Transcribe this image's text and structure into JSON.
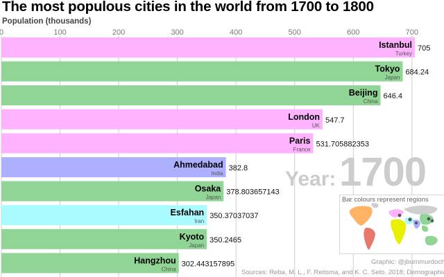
{
  "header": {
    "title": "The most populous cities in the world from 1700 to 1800",
    "axis_label": "Population (thousands)"
  },
  "year": {
    "label": "Year:",
    "value": "1700"
  },
  "legend": {
    "title": "Bar colours represent regions"
  },
  "footer": {
    "credit": "Graphic: @jburnmurdoch",
    "sources": "Sources: Reba, M. L., F. Reitsma, and K. C. Seto. 2018; Demographia"
  },
  "colors": {
    "Europe": "#ffb3ff",
    "East Asia": "#90d595",
    "South Asia": "#adb0ff",
    "Middle East": "#aafbff",
    "axis": "#cccccc",
    "text": "#000000",
    "subtext": "#555555"
  },
  "chart_data": {
    "type": "bar",
    "orientation": "horizontal",
    "xlim": [
      0,
      705
    ],
    "ticks": [
      "0",
      "100",
      "200",
      "300",
      "400",
      "500",
      "600",
      "700"
    ],
    "tick_values": [
      0,
      100,
      200,
      300,
      400,
      500,
      600,
      700
    ],
    "grid": true,
    "bars": [
      {
        "name": "Istanbul",
        "country": "Turkey",
        "value": 705,
        "value_label": "705",
        "group": "Europe"
      },
      {
        "name": "Tokyo",
        "country": "Japan",
        "value": 684.24,
        "value_label": "684.24",
        "group": "East Asia"
      },
      {
        "name": "Beijing",
        "country": "China",
        "value": 646.4,
        "value_label": "646.4",
        "group": "East Asia"
      },
      {
        "name": "London",
        "country": "UK",
        "value": 547.7,
        "value_label": "547.7",
        "group": "Europe"
      },
      {
        "name": "Paris",
        "country": "France",
        "value": 531.705882353,
        "value_label": "531.705882353",
        "group": "Europe"
      },
      {
        "name": "Ahmedabad",
        "country": "India",
        "value": 382.8,
        "value_label": "382.8",
        "group": "South Asia"
      },
      {
        "name": "Osaka",
        "country": "Japan",
        "value": 378.803657143,
        "value_label": "378.803657143",
        "group": "East Asia"
      },
      {
        "name": "Esfahan",
        "country": "Iran",
        "value": 350.37037037,
        "value_label": "350.37037037",
        "group": "Middle East"
      },
      {
        "name": "Kyoto",
        "country": "Japan",
        "value": 350.2465,
        "value_label": "350.2465",
        "group": "East Asia"
      },
      {
        "name": "Hangzhou",
        "country": "China",
        "value": 302.443157895,
        "value_label": "302.443157895",
        "group": "East Asia"
      }
    ]
  }
}
